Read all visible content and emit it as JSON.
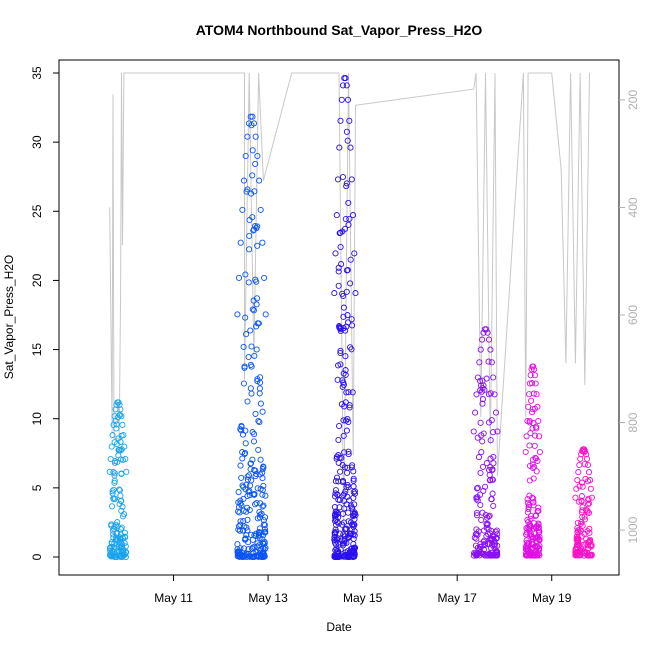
{
  "chart_data": {
    "type": "scatter",
    "title": "ATOM4 Northbound Sat_Vapor_Press_H2O",
    "xlabel": "Date",
    "ylabel": "Sat_Vapor_Press_H2O",
    "xlim": [
      "May 9",
      "May 20"
    ],
    "ylim": [
      0,
      35
    ],
    "x_ticks": [
      "May 11",
      "May 13",
      "May 15",
      "May 17",
      "May 19"
    ],
    "y_ticks": [
      0,
      5,
      10,
      15,
      20,
      25,
      30,
      35
    ],
    "y2_ticks": [
      200,
      400,
      600,
      800,
      1000
    ],
    "y2_lim": [
      1050,
      150
    ],
    "y2_reversed": true,
    "grid": false,
    "colors": {
      "pressure_line": "#c8c8c8",
      "axis": "#000000",
      "secondary_axis": "#b0b0b0"
    },
    "series": [
      {
        "start": "May 9.65",
        "end": "May 10.0",
        "ymin": 0.0,
        "peak": 11.2,
        "color": "#1aa3ee"
      },
      {
        "start": "May 12.35",
        "end": "May 12.95",
        "ymin": 0.0,
        "peak": 31.9,
        "color": "#0b55f5"
      },
      {
        "start": "May 14.4",
        "end": "May 14.85",
        "ymin": 0.0,
        "peak": 34.7,
        "color": "#2a10ee"
      },
      {
        "start": "May 17.35",
        "end": "May 17.85",
        "ymin": 0.1,
        "peak": 16.5,
        "color": "#8a10f2"
      },
      {
        "start": "May 18.45",
        "end": "May 18.75",
        "ymin": 0.1,
        "peak": 13.8,
        "color": "#df10e6"
      },
      {
        "start": "May 19.5",
        "end": "May 19.85",
        "ymin": 0.1,
        "peak": 7.8,
        "color": "#ff10c8"
      }
    ],
    "pressure_trace": [
      [
        "May 9.65",
        400
      ],
      [
        "May 9.7",
        820
      ],
      [
        "May 9.72",
        190
      ],
      [
        "May 9.74",
        830
      ],
      [
        "May 9.85",
        830
      ],
      [
        "May 9.88",
        560
      ],
      [
        "May 9.9",
        150
      ],
      [
        "May 9.92",
        470
      ],
      [
        "May 9.95",
        150
      ],
      [
        "May 12.5",
        150
      ],
      [
        "May 12.5",
        720
      ],
      [
        "May 12.6",
        150
      ],
      [
        "May 12.7",
        680
      ],
      [
        "May 12.8",
        150
      ],
      [
        "May 12.9",
        350
      ],
      [
        "May 13.5",
        150
      ],
      [
        "May 14.5",
        150
      ],
      [
        "May 14.6",
        990
      ],
      [
        "May 14.7",
        150
      ],
      [
        "May 14.8",
        860
      ],
      [
        "May 14.85",
        210
      ],
      [
        "May 17.35",
        180
      ],
      [
        "May 17.4",
        150
      ],
      [
        "May 17.5",
        790
      ],
      [
        "May 17.6",
        150
      ],
      [
        "May 17.7",
        840
      ],
      [
        "May 17.8",
        150
      ],
      [
        "May 17.85",
        900
      ],
      [
        "May 18.4",
        150
      ],
      [
        "May 18.45",
        790
      ],
      [
        "May 18.5",
        150
      ],
      [
        "May 19.0",
        150
      ],
      [
        "May 19.2",
        330
      ],
      [
        "May 19.3",
        690
      ],
      [
        "May 19.4",
        150
      ],
      [
        "May 19.5",
        690
      ],
      [
        "May 19.6",
        150
      ],
      [
        "May 19.7",
        730
      ],
      [
        "May 19.8",
        150
      ]
    ]
  }
}
